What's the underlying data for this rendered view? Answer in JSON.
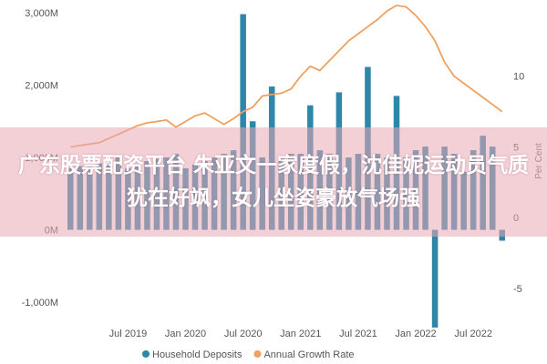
{
  "chart_data": {
    "type": "bar",
    "x": [
      "2019-01",
      "2019-02",
      "2019-03",
      "2019-04",
      "2019-05",
      "2019-06",
      "2019-07",
      "2019-08",
      "2019-09",
      "2019-10",
      "2019-11",
      "2019-12",
      "2020-01",
      "2020-02",
      "2020-03",
      "2020-04",
      "2020-05",
      "2020-06",
      "2020-07",
      "2020-08",
      "2020-09",
      "2020-10",
      "2020-11",
      "2020-12",
      "2021-01",
      "2021-02",
      "2021-03",
      "2021-04",
      "2021-05",
      "2021-06",
      "2021-07",
      "2021-08",
      "2021-09",
      "2021-10",
      "2021-11",
      "2021-12",
      "2022-01",
      "2022-02",
      "2022-03",
      "2022-04",
      "2022-05",
      "2022-06",
      "2022-07",
      "2022-08",
      "2022-09",
      "2022-10"
    ],
    "series": [
      {
        "name": "Household Deposits",
        "kind": "bar",
        "axis": "left",
        "color": "#2e86a8",
        "values": [
          850,
          880,
          900,
          920,
          950,
          1000,
          850,
          900,
          950,
          980,
          1000,
          1050,
          850,
          900,
          950,
          1000,
          1050,
          1100,
          2980,
          1500,
          1000,
          1980,
          1000,
          1050,
          1050,
          1720,
          1100,
          1050,
          1900,
          1000,
          1050,
          2250,
          1050,
          1000,
          1850,
          1000,
          1100,
          1150,
          -1350,
          1150,
          1050,
          800,
          1100,
          1300,
          1150,
          -150
        ]
      },
      {
        "name": "Annual Growth Rate",
        "kind": "line",
        "axis": "right",
        "color": "#f0a060",
        "values": [
          5.0,
          5.1,
          5.2,
          5.3,
          5.6,
          5.9,
          6.2,
          6.5,
          6.7,
          6.8,
          6.9,
          6.4,
          6.8,
          7.2,
          7.4,
          7.0,
          6.6,
          7.0,
          7.5,
          7.8,
          8.6,
          8.7,
          8.8,
          9.1,
          10.0,
          10.7,
          10.4,
          11.1,
          11.8,
          12.5,
          13.0,
          13.5,
          14.0,
          14.6,
          15.0,
          14.9,
          14.3,
          13.5,
          12.5,
          11.0,
          10.0,
          9.5,
          9.0,
          8.5,
          8.0,
          7.5
        ]
      }
    ],
    "y_left": {
      "ticks": [
        -1000,
        0,
        1000,
        2000,
        3000
      ],
      "tick_labels": [
        "-1,000M",
        "0M",
        "1,000M",
        "2,000M",
        "3,000M"
      ],
      "lim": [
        -1200,
        3100
      ]
    },
    "y_right": {
      "ticks": [
        -5,
        0,
        5,
        10
      ],
      "tick_labels": [
        "-5",
        "0",
        "5",
        "10"
      ],
      "lim": [
        -7,
        15
      ],
      "label": "Per Cent"
    },
    "x_tick_labels": [
      {
        "x": "2019-07",
        "label": "Jul 2019"
      },
      {
        "x": "2020-01",
        "label": "Jan 2020"
      },
      {
        "x": "2020-07",
        "label": "Jul 2020"
      },
      {
        "x": "2021-01",
        "label": "Jan 2021"
      },
      {
        "x": "2021-07",
        "label": "Jul 2021"
      },
      {
        "x": "2022-01",
        "label": "Jan 2022"
      },
      {
        "x": "2022-07",
        "label": "Jul 2022"
      }
    ],
    "legend_position": "bottom",
    "grid": false
  },
  "overlay": {
    "headline": "广东股票配资平台 朱亚文一家度假，沈佳妮运动员气质犹在好飒，女儿坐姿豪放气场强"
  }
}
